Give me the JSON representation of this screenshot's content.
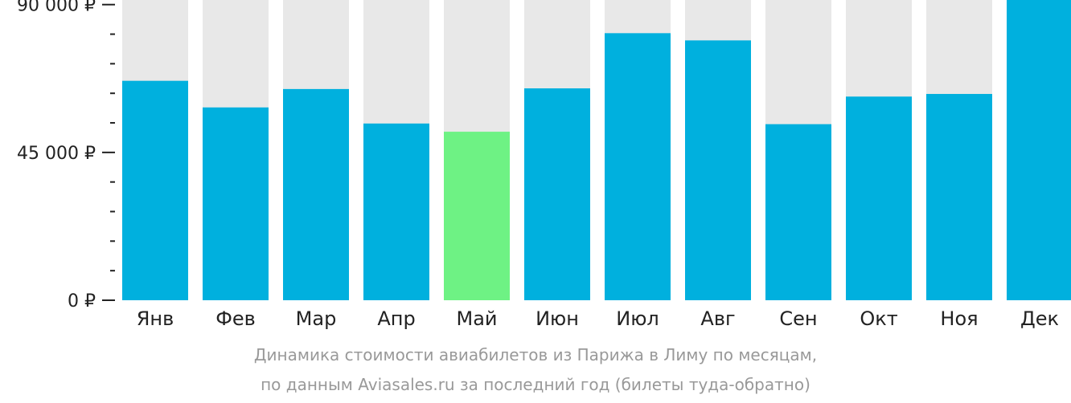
{
  "chart_data": {
    "type": "bar",
    "categories": [
      "Янв",
      "Фев",
      "Мар",
      "Апр",
      "Май",
      "Июн",
      "Июл",
      "Авг",
      "Сен",
      "Окт",
      "Ноя",
      "Дек"
    ],
    "values": [
      66800,
      58700,
      64300,
      53800,
      51300,
      64500,
      81300,
      79100,
      53600,
      62000,
      62800,
      91400
    ],
    "highlight_index": 4,
    "ylim": [
      0,
      91400
    ],
    "yticks": [
      {
        "value": 0,
        "label": "0 ₽"
      },
      {
        "value": 45000,
        "label": "45 000 ₽"
      },
      {
        "value": 90000,
        "label": "90 000 ₽"
      }
    ],
    "minor_tick_step": 9000,
    "colors": {
      "bar": "#00b0de",
      "highlight": "#6ef284",
      "track": "#e8e8e8",
      "axis": "#222222"
    }
  },
  "caption": {
    "line1": "Динамика стоимости авиабилетов из Парижа в Лиму по месяцам,",
    "line2": "по данным Aviasales.ru за последний год (билеты туда-обратно)"
  }
}
